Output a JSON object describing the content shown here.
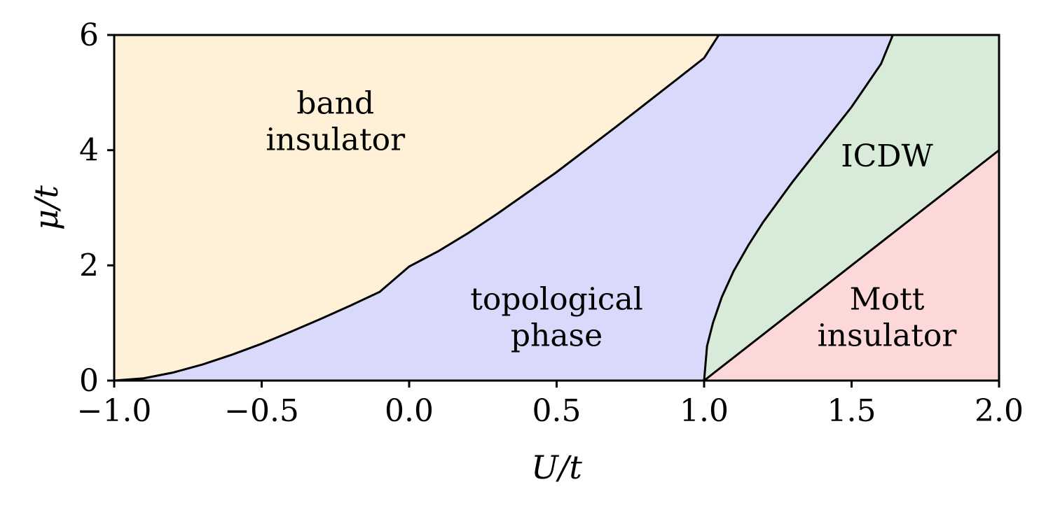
{
  "chart_data": {
    "type": "area",
    "title": "",
    "xlabel": "U/t",
    "ylabel": "μ/t",
    "xlim": [
      -1.0,
      2.0
    ],
    "ylim": [
      0,
      6
    ],
    "grid": false,
    "x_ticks": [
      -1.0,
      -0.5,
      0.0,
      0.5,
      1.0,
      1.5,
      2.0
    ],
    "x_tick_labels": [
      "−1.0",
      "−0.5",
      "0.0",
      "0.5",
      "1.0",
      "1.5",
      "2.0"
    ],
    "y_ticks": [
      0,
      2,
      4,
      6
    ],
    "y_tick_labels": [
      "0",
      "2",
      "4",
      "6"
    ],
    "boundaries": [
      {
        "id": "band-topological",
        "points": [
          [
            -1.0,
            0.0
          ],
          [
            -0.9,
            0.04
          ],
          [
            -0.8,
            0.14
          ],
          [
            -0.7,
            0.28
          ],
          [
            -0.6,
            0.45
          ],
          [
            -0.5,
            0.64
          ],
          [
            -0.4,
            0.85
          ],
          [
            -0.3,
            1.07
          ],
          [
            -0.2,
            1.3
          ],
          [
            -0.1,
            1.54
          ],
          [
            0.0,
            1.98
          ],
          [
            0.1,
            2.25
          ],
          [
            0.2,
            2.56
          ],
          [
            0.3,
            2.9
          ],
          [
            0.4,
            3.26
          ],
          [
            0.5,
            3.62
          ],
          [
            0.6,
            4.01
          ],
          [
            0.7,
            4.4
          ],
          [
            0.8,
            4.8
          ],
          [
            0.9,
            5.2
          ],
          [
            1.0,
            5.6
          ],
          [
            1.05,
            6.0
          ]
        ]
      },
      {
        "id": "topological-icdw",
        "points": [
          [
            1.0,
            0.0
          ],
          [
            1.01,
            0.6
          ],
          [
            1.03,
            1.0
          ],
          [
            1.06,
            1.45
          ],
          [
            1.1,
            1.9
          ],
          [
            1.15,
            2.35
          ],
          [
            1.2,
            2.75
          ],
          [
            1.3,
            3.45
          ],
          [
            1.4,
            4.1
          ],
          [
            1.5,
            4.75
          ],
          [
            1.6,
            5.5
          ],
          [
            1.64,
            6.0
          ]
        ]
      },
      {
        "id": "icdw-mott",
        "points": [
          [
            1.0,
            0.0
          ],
          [
            2.0,
            4.0
          ]
        ]
      }
    ],
    "regions": [
      {
        "id": "band-insulator",
        "lines": [
          "band",
          "insulator"
        ],
        "color": "#fff0d8",
        "label_at": [
          -0.25,
          4.5
        ]
      },
      {
        "id": "topological-phase",
        "lines": [
          "topological",
          "phase"
        ],
        "color": "#d9d9fc",
        "label_at": [
          0.5,
          1.1
        ]
      },
      {
        "id": "icdw",
        "lines": [
          "ICDW"
        ],
        "color": "#d8ebd8",
        "label_at": [
          1.62,
          3.9
        ]
      },
      {
        "id": "mott-insulator",
        "lines": [
          "Mott",
          "insulator"
        ],
        "color": "#fdd8d8",
        "label_at": [
          1.62,
          1.1
        ]
      }
    ]
  }
}
